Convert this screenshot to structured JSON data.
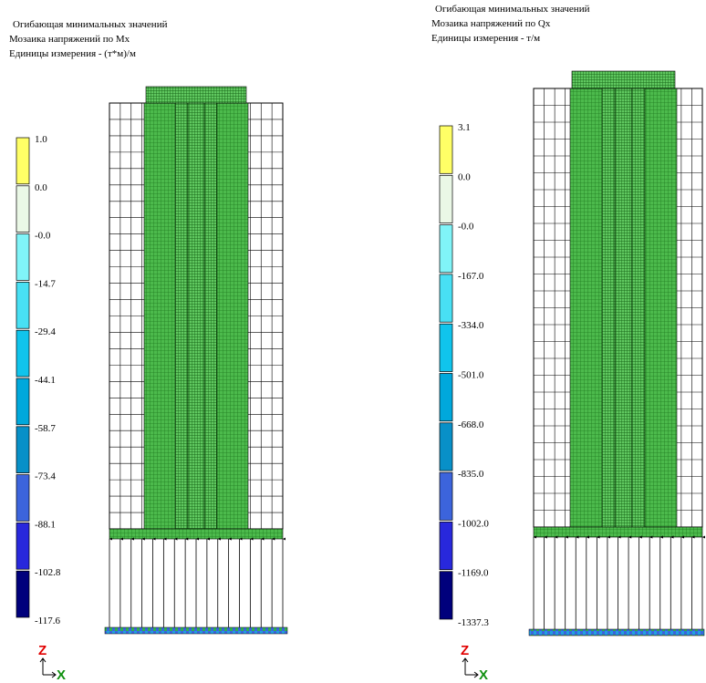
{
  "panels": [
    {
      "title_lines": [
        "Огибающая минимальных значений",
        "Мозаика напряжений по Mx",
        "Единицы измерения - (т*м)/м"
      ],
      "legend": {
        "labels": [
          "1.0",
          "0.0",
          "-0.0",
          "-14.7",
          "-29.4",
          "-44.1",
          "-58.7",
          "-73.4",
          "-88.1",
          "-102.8",
          "-117.6"
        ],
        "colors": [
          "#ffff66",
          "#eaf8e6",
          "#80f4f8",
          "#48e0f4",
          "#10c4ec",
          "#00a8dc",
          "#0890c8",
          "#3c64dc",
          "#2828dc",
          "#00007c"
        ]
      },
      "axes": {
        "z": "Z",
        "x": "X"
      }
    },
    {
      "title_lines": [
        "Огибающая минимальных значений",
        "Мозаика напряжений по Qx",
        "Единицы измерения - т/м"
      ],
      "legend": {
        "labels": [
          "3.1",
          "0.0",
          "-0.0",
          "-167.0",
          "-334.0",
          "-501.0",
          "-668.0",
          "-835.0",
          "-1002.0",
          "-1169.0",
          "-1337.3"
        ],
        "colors": [
          "#ffff66",
          "#eaf8e6",
          "#80f4f8",
          "#48e0f4",
          "#10c4ec",
          "#00a8dc",
          "#0890c8",
          "#3c64dc",
          "#2828dc",
          "#00007c"
        ]
      },
      "axes": {
        "z": "Z",
        "x": "X"
      }
    }
  ]
}
